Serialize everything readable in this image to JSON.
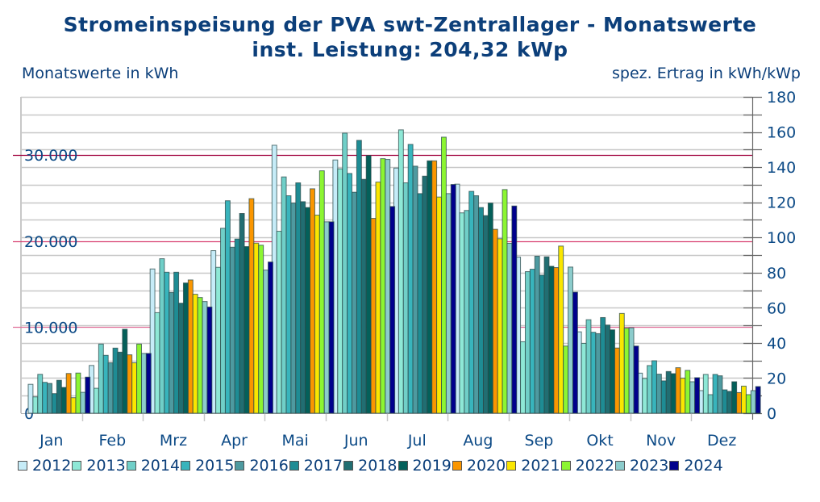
{
  "chart_data": {
    "type": "bar",
    "title": "Stromeinspeisung der PVA swt-Zentrallager - Monatswerte",
    "subtitle": "inst. Leistung: 204,32 kWp",
    "ylabel": "Monatswerte in kWh",
    "y2label": "spez. Ertrag in kWh/kWp",
    "ylim": [
      0,
      36777
    ],
    "y2lim": [
      0,
      180
    ],
    "left_ticks": [
      "0",
      "10.000",
      "20.000",
      "30.000"
    ],
    "left_tick_values": [
      0,
      10000,
      20000,
      30000
    ],
    "right_ticks": [
      "0",
      "20",
      "40",
      "60",
      "80",
      "100",
      "120",
      "140",
      "160",
      "180"
    ],
    "right_tick_values": [
      0,
      20,
      40,
      60,
      80,
      100,
      120,
      140,
      160,
      180
    ],
    "grid": true,
    "legend_position": "bottom",
    "categories": [
      "Jan",
      "Feb",
      "Mrz",
      "Apr",
      "Mai",
      "Jun",
      "Jul",
      "Aug",
      "Sep",
      "Okt",
      "Nov",
      "Dez"
    ],
    "series": [
      {
        "name": "2012",
        "color": "#c6ecf8",
        "values": [
          3360,
          5550,
          16770,
          18900,
          31150,
          29440,
          28500,
          26630,
          18150,
          9460,
          4660,
          2630
        ]
      },
      {
        "name": "2013",
        "color": "#8ee8d6",
        "values": [
          1900,
          2900,
          11690,
          16960,
          21150,
          28410,
          32940,
          23290,
          8310,
          8120,
          4040,
          4510
        ]
      },
      {
        "name": "2014",
        "color": "#70cfc8",
        "values": [
          4520,
          8040,
          17960,
          21500,
          27470,
          32560,
          26780,
          23570,
          16460,
          10870,
          5540,
          2160
        ]
      },
      {
        "name": "2015",
        "color": "#38b4bc",
        "values": [
          3590,
          6730,
          16390,
          24700,
          25280,
          27870,
          31250,
          25790,
          16740,
          9410,
          6100,
          4510
        ]
      },
      {
        "name": "2016",
        "color": "#4e9aa0",
        "values": [
          3460,
          5860,
          14040,
          19300,
          24430,
          25690,
          28720,
          25280,
          18250,
          9250,
          4540,
          4350
        ]
      },
      {
        "name": "2017",
        "color": "#1e8c94",
        "values": [
          2280,
          7570,
          16390,
          20250,
          26780,
          31720,
          25530,
          23910,
          16050,
          11120,
          3760,
          2720
        ]
      },
      {
        "name": "2018",
        "color": "#216e72",
        "values": [
          3830,
          7100,
          12790,
          23220,
          24590,
          27190,
          27560,
          22970,
          18180,
          10250,
          4850,
          2540
        ]
      },
      {
        "name": "2019",
        "color": "#04605a",
        "values": [
          3000,
          9760,
          15140,
          19370,
          23910,
          29960,
          29340,
          24430,
          17080,
          9690,
          4600,
          3660
        ]
      },
      {
        "name": "2020",
        "color": "#fa9600",
        "values": [
          4620,
          6790,
          15490,
          24940,
          26090,
          22650,
          29340,
          21380,
          16930,
          7580,
          5290,
          2400
        ]
      },
      {
        "name": "2021",
        "color": "#fae600",
        "values": [
          1810,
          5860,
          13830,
          19770,
          23030,
          26870,
          25130,
          20280,
          19430,
          11600,
          4070,
          3150
        ]
      },
      {
        "name": "2022",
        "color": "#8cf532",
        "values": [
          4670,
          8040,
          13450,
          19530,
          28180,
          29590,
          32090,
          26000,
          7810,
          9880,
          4980,
          2160
        ]
      },
      {
        "name": "2023",
        "color": "#8ccccc",
        "values": [
          2430,
          6950,
          12980,
          16640,
          22250,
          29500,
          25530,
          19750,
          16990,
          9930,
          3660,
          2630
        ]
      },
      {
        "name": "2024",
        "color": "#00008c",
        "values": [
          4200,
          6950,
          12350,
          17580,
          22250,
          24030,
          26590,
          24090,
          14070,
          7810,
          4130,
          3100
        ]
      }
    ]
  }
}
